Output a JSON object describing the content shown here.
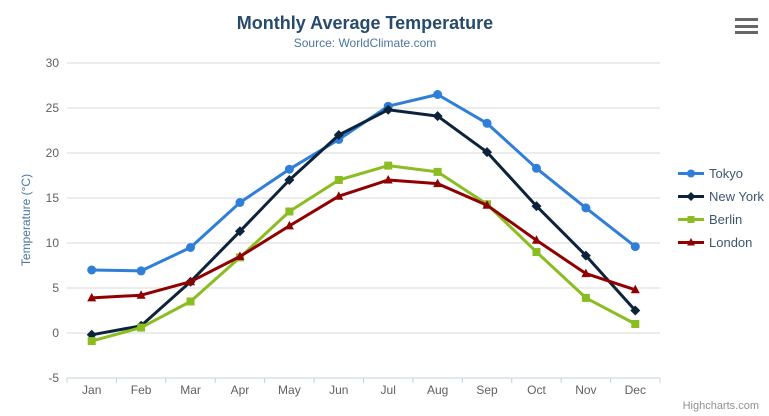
{
  "chart": {
    "title": "Monthly Average Temperature",
    "subtitle": "Source: WorldClimate.com",
    "credits": "Highcharts.com"
  },
  "icons": {
    "export_menu": "hamburger-icon"
  },
  "colors": {
    "title": "#274b6d",
    "subtitle": "#4d759e",
    "axis_title": "#4d759e",
    "tick_label": "#606060",
    "grid": "#d8d8d8",
    "axis_line": "#c0d0e0",
    "legend_text": "#3e576f",
    "credits": "#909090",
    "menu_icon": "#666666"
  },
  "chart_data": {
    "type": "line",
    "title": "Monthly Average Temperature",
    "subtitle": "Source: WorldClimate.com",
    "xlabel": "",
    "ylabel": "Temperature (°C)",
    "ylim": [
      -5,
      30
    ],
    "ytick_step": 5,
    "grid": true,
    "legend_position": "right",
    "categories": [
      "Jan",
      "Feb",
      "Mar",
      "Apr",
      "May",
      "Jun",
      "Jul",
      "Aug",
      "Sep",
      "Oct",
      "Nov",
      "Dec"
    ],
    "series": [
      {
        "name": "Tokyo",
        "color": "#2f7ed8",
        "marker": "circle",
        "values": [
          7.0,
          6.9,
          9.5,
          14.5,
          18.2,
          21.5,
          25.2,
          26.5,
          23.3,
          18.3,
          13.9,
          9.6
        ]
      },
      {
        "name": "New York",
        "color": "#0d233a",
        "marker": "diamond",
        "values": [
          -0.2,
          0.8,
          5.7,
          11.3,
          17.0,
          22.0,
          24.8,
          24.1,
          20.1,
          14.1,
          8.6,
          2.5
        ]
      },
      {
        "name": "Berlin",
        "color": "#8bbc21",
        "marker": "square",
        "values": [
          -0.9,
          0.6,
          3.5,
          8.4,
          13.5,
          17.0,
          18.6,
          17.9,
          14.3,
          9.0,
          3.9,
          1.0
        ]
      },
      {
        "name": "London",
        "color": "#910000",
        "marker": "triangle",
        "values": [
          3.9,
          4.2,
          5.7,
          8.5,
          11.9,
          15.2,
          17.0,
          16.6,
          14.2,
          10.3,
          6.6,
          4.8
        ]
      }
    ]
  }
}
